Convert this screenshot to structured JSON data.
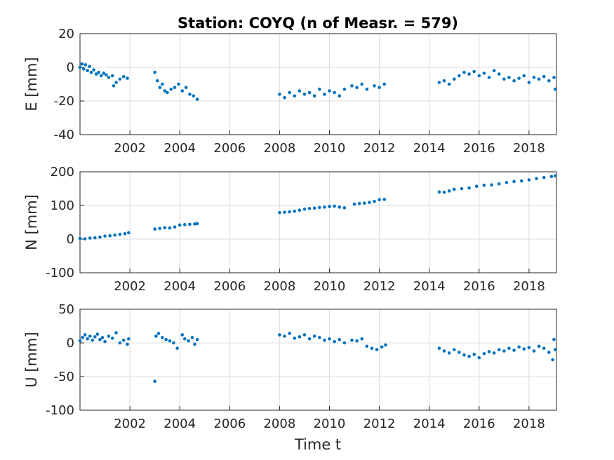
{
  "chart_data": [
    {
      "type": "scatter",
      "title": "Station: COYQ (n of Measr. = 579)",
      "ylabel": "E [mm]",
      "xlabel": "",
      "xlim": [
        2000.0,
        2019.1
      ],
      "ylim": [
        -40,
        20
      ],
      "xticks": [
        "2002",
        "2004",
        "2006",
        "2008",
        "2010",
        "2012",
        "2014",
        "2016",
        "2018"
      ],
      "yticks": [
        "20",
        "0",
        "-20",
        "-40"
      ],
      "grid": true,
      "series": [
        {
          "color": "#0072BD",
          "points": [
            [
              2000.0,
              0.0
            ],
            [
              2000.08,
              2.0
            ],
            [
              2000.15,
              -1.0
            ],
            [
              2000.22,
              1.5
            ],
            [
              2000.3,
              -2.0
            ],
            [
              2000.38,
              0.5
            ],
            [
              2000.45,
              -3.0
            ],
            [
              2000.55,
              -1.5
            ],
            [
              2000.65,
              -4.0
            ],
            [
              2000.75,
              -3.0
            ],
            [
              2000.85,
              -5.0
            ],
            [
              2000.95,
              -3.5
            ],
            [
              2001.05,
              -4.5
            ],
            [
              2001.15,
              -6.0
            ],
            [
              2001.3,
              -5.0
            ],
            [
              2001.45,
              -9.0
            ],
            [
              2001.6,
              -7.0
            ],
            [
              2001.75,
              -5.5
            ],
            [
              2001.9,
              -6.5
            ],
            [
              2001.35,
              -11.0
            ],
            [
              2003.0,
              -3.0
            ],
            [
              2003.1,
              -8.0
            ],
            [
              2003.2,
              -12.0
            ],
            [
              2003.3,
              -10.0
            ],
            [
              2003.4,
              -14.0
            ],
            [
              2003.5,
              -15.0
            ],
            [
              2003.65,
              -13.0
            ],
            [
              2003.8,
              -12.0
            ],
            [
              2003.95,
              -10.0
            ],
            [
              2004.1,
              -14.0
            ],
            [
              2004.25,
              -12.0
            ],
            [
              2004.4,
              -16.0
            ],
            [
              2004.55,
              -17.0
            ],
            [
              2004.7,
              -19.0
            ],
            [
              2008.0,
              -16.0
            ],
            [
              2008.2,
              -18.0
            ],
            [
              2008.4,
              -15.0
            ],
            [
              2008.6,
              -17.0
            ],
            [
              2008.8,
              -14.0
            ],
            [
              2009.0,
              -16.0
            ],
            [
              2009.2,
              -15.0
            ],
            [
              2009.4,
              -17.0
            ],
            [
              2009.6,
              -13.0
            ],
            [
              2009.8,
              -16.0
            ],
            [
              2010.0,
              -14.0
            ],
            [
              2010.2,
              -15.0
            ],
            [
              2010.4,
              -17.0
            ],
            [
              2010.6,
              -13.0
            ],
            [
              2010.9,
              -11.0
            ],
            [
              2011.1,
              -12.0
            ],
            [
              2011.3,
              -10.0
            ],
            [
              2011.5,
              -13.0
            ],
            [
              2011.8,
              -11.0
            ],
            [
              2012.0,
              -12.0
            ],
            [
              2012.2,
              -10.0
            ],
            [
              2014.4,
              -9.0
            ],
            [
              2014.6,
              -8.0
            ],
            [
              2014.8,
              -10.0
            ],
            [
              2015.0,
              -7.0
            ],
            [
              2015.2,
              -5.0
            ],
            [
              2015.4,
              -3.0
            ],
            [
              2015.6,
              -4.0
            ],
            [
              2015.8,
              -2.5
            ],
            [
              2016.0,
              -5.0
            ],
            [
              2016.2,
              -3.5
            ],
            [
              2016.4,
              -6.0
            ],
            [
              2016.6,
              -2.0
            ],
            [
              2016.8,
              -4.0
            ],
            [
              2017.0,
              -7.0
            ],
            [
              2017.2,
              -6.0
            ],
            [
              2017.4,
              -8.0
            ],
            [
              2017.6,
              -6.5
            ],
            [
              2017.8,
              -5.0
            ],
            [
              2018.0,
              -9.0
            ],
            [
              2018.2,
              -6.0
            ],
            [
              2018.4,
              -7.0
            ],
            [
              2018.6,
              -5.5
            ],
            [
              2018.8,
              -8.0
            ],
            [
              2019.0,
              -6.0
            ],
            [
              2019.05,
              -13.0
            ]
          ]
        }
      ]
    },
    {
      "type": "scatter",
      "ylabel": "N [mm]",
      "xlabel": "",
      "xlim": [
        2000.0,
        2019.1
      ],
      "ylim": [
        -100,
        200
      ],
      "xticks": [
        "2002",
        "2004",
        "2006",
        "2008",
        "2010",
        "2012",
        "2014",
        "2016",
        "2018"
      ],
      "yticks": [
        "200",
        "100",
        "0",
        "-100"
      ],
      "grid": true,
      "series": [
        {
          "color": "#0072BD",
          "points": [
            [
              2000.0,
              2
            ],
            [
              2000.2,
              1
            ],
            [
              2000.4,
              3
            ],
            [
              2000.6,
              4
            ],
            [
              2000.8,
              6
            ],
            [
              2001.0,
              9
            ],
            [
              2001.2,
              10
            ],
            [
              2001.4,
              12
            ],
            [
              2001.6,
              14
            ],
            [
              2001.8,
              16
            ],
            [
              2001.95,
              19
            ],
            [
              2003.0,
              30
            ],
            [
              2003.2,
              32
            ],
            [
              2003.4,
              34
            ],
            [
              2003.6,
              33
            ],
            [
              2003.8,
              36
            ],
            [
              2004.0,
              42
            ],
            [
              2004.2,
              43
            ],
            [
              2004.4,
              44
            ],
            [
              2004.6,
              45
            ],
            [
              2004.7,
              46
            ],
            [
              2008.0,
              79
            ],
            [
              2008.2,
              80
            ],
            [
              2008.4,
              81
            ],
            [
              2008.6,
              83
            ],
            [
              2008.8,
              86
            ],
            [
              2009.0,
              89
            ],
            [
              2009.2,
              91
            ],
            [
              2009.4,
              92
            ],
            [
              2009.6,
              94
            ],
            [
              2009.8,
              95
            ],
            [
              2010.0,
              97
            ],
            [
              2010.2,
              98
            ],
            [
              2010.4,
              95
            ],
            [
              2010.6,
              93
            ],
            [
              2011.0,
              104
            ],
            [
              2011.2,
              106
            ],
            [
              2011.4,
              107
            ],
            [
              2011.6,
              109
            ],
            [
              2011.8,
              112
            ],
            [
              2012.0,
              117
            ],
            [
              2012.2,
              118
            ],
            [
              2014.4,
              140
            ],
            [
              2014.6,
              139
            ],
            [
              2014.8,
              143
            ],
            [
              2015.0,
              148
            ],
            [
              2015.3,
              150
            ],
            [
              2015.6,
              152
            ],
            [
              2015.9,
              157
            ],
            [
              2016.2,
              160
            ],
            [
              2016.5,
              161
            ],
            [
              2016.8,
              164
            ],
            [
              2017.1,
              168
            ],
            [
              2017.4,
              171
            ],
            [
              2017.7,
              173
            ],
            [
              2018.0,
              176
            ],
            [
              2018.3,
              180
            ],
            [
              2018.6,
              183
            ],
            [
              2018.9,
              186
            ],
            [
              2019.05,
              188
            ]
          ]
        }
      ]
    },
    {
      "type": "scatter",
      "ylabel": "U [mm]",
      "xlabel": "Time t",
      "xlim": [
        2000.0,
        2019.1
      ],
      "ylim": [
        -100,
        50
      ],
      "xticks": [
        "2002",
        "2004",
        "2006",
        "2008",
        "2010",
        "2012",
        "2014",
        "2016",
        "2018"
      ],
      "yticks": [
        "50",
        "0",
        "-50",
        "-100"
      ],
      "grid": true,
      "series": [
        {
          "color": "#0072BD",
          "points": [
            [
              2000.0,
              3
            ],
            [
              2000.1,
              8
            ],
            [
              2000.2,
              12
            ],
            [
              2000.3,
              6
            ],
            [
              2000.4,
              10
            ],
            [
              2000.5,
              4
            ],
            [
              2000.6,
              9
            ],
            [
              2000.7,
              13
            ],
            [
              2000.8,
              5
            ],
            [
              2000.9,
              8
            ],
            [
              2001.0,
              2
            ],
            [
              2001.15,
              10
            ],
            [
              2001.3,
              7
            ],
            [
              2001.45,
              15
            ],
            [
              2001.6,
              0
            ],
            [
              2001.75,
              4
            ],
            [
              2001.9,
              -2
            ],
            [
              2001.95,
              6
            ],
            [
              2003.0,
              -57
            ],
            [
              2003.05,
              10
            ],
            [
              2003.15,
              14
            ],
            [
              2003.3,
              8
            ],
            [
              2003.45,
              5
            ],
            [
              2003.6,
              3
            ],
            [
              2003.75,
              0
            ],
            [
              2003.9,
              -8
            ],
            [
              2004.1,
              12
            ],
            [
              2004.2,
              6
            ],
            [
              2004.35,
              3
            ],
            [
              2004.5,
              8
            ],
            [
              2004.6,
              -2
            ],
            [
              2004.7,
              5
            ],
            [
              2008.0,
              12
            ],
            [
              2008.2,
              10
            ],
            [
              2008.4,
              14
            ],
            [
              2008.6,
              7
            ],
            [
              2008.8,
              9
            ],
            [
              2009.0,
              12
            ],
            [
              2009.2,
              6
            ],
            [
              2009.4,
              10
            ],
            [
              2009.6,
              8
            ],
            [
              2009.8,
              4
            ],
            [
              2010.0,
              6
            ],
            [
              2010.2,
              2
            ],
            [
              2010.4,
              5
            ],
            [
              2010.6,
              0
            ],
            [
              2010.9,
              4
            ],
            [
              2011.1,
              3
            ],
            [
              2011.3,
              6
            ],
            [
              2011.5,
              -5
            ],
            [
              2011.7,
              -8
            ],
            [
              2011.9,
              -10
            ],
            [
              2012.1,
              -6
            ],
            [
              2012.25,
              -3
            ],
            [
              2014.4,
              -8
            ],
            [
              2014.6,
              -12
            ],
            [
              2014.8,
              -15
            ],
            [
              2015.0,
              -10
            ],
            [
              2015.2,
              -14
            ],
            [
              2015.4,
              -18
            ],
            [
              2015.6,
              -20
            ],
            [
              2015.8,
              -17
            ],
            [
              2016.0,
              -22
            ],
            [
              2016.2,
              -16
            ],
            [
              2016.4,
              -13
            ],
            [
              2016.6,
              -15
            ],
            [
              2016.8,
              -10
            ],
            [
              2017.0,
              -12
            ],
            [
              2017.2,
              -8
            ],
            [
              2017.4,
              -11
            ],
            [
              2017.6,
              -6
            ],
            [
              2017.8,
              -9
            ],
            [
              2018.0,
              -7
            ],
            [
              2018.2,
              -12
            ],
            [
              2018.4,
              -5
            ],
            [
              2018.6,
              -8
            ],
            [
              2018.8,
              -14
            ],
            [
              2018.95,
              -25
            ],
            [
              2019.0,
              5
            ],
            [
              2019.05,
              -10
            ]
          ]
        }
      ]
    }
  ]
}
